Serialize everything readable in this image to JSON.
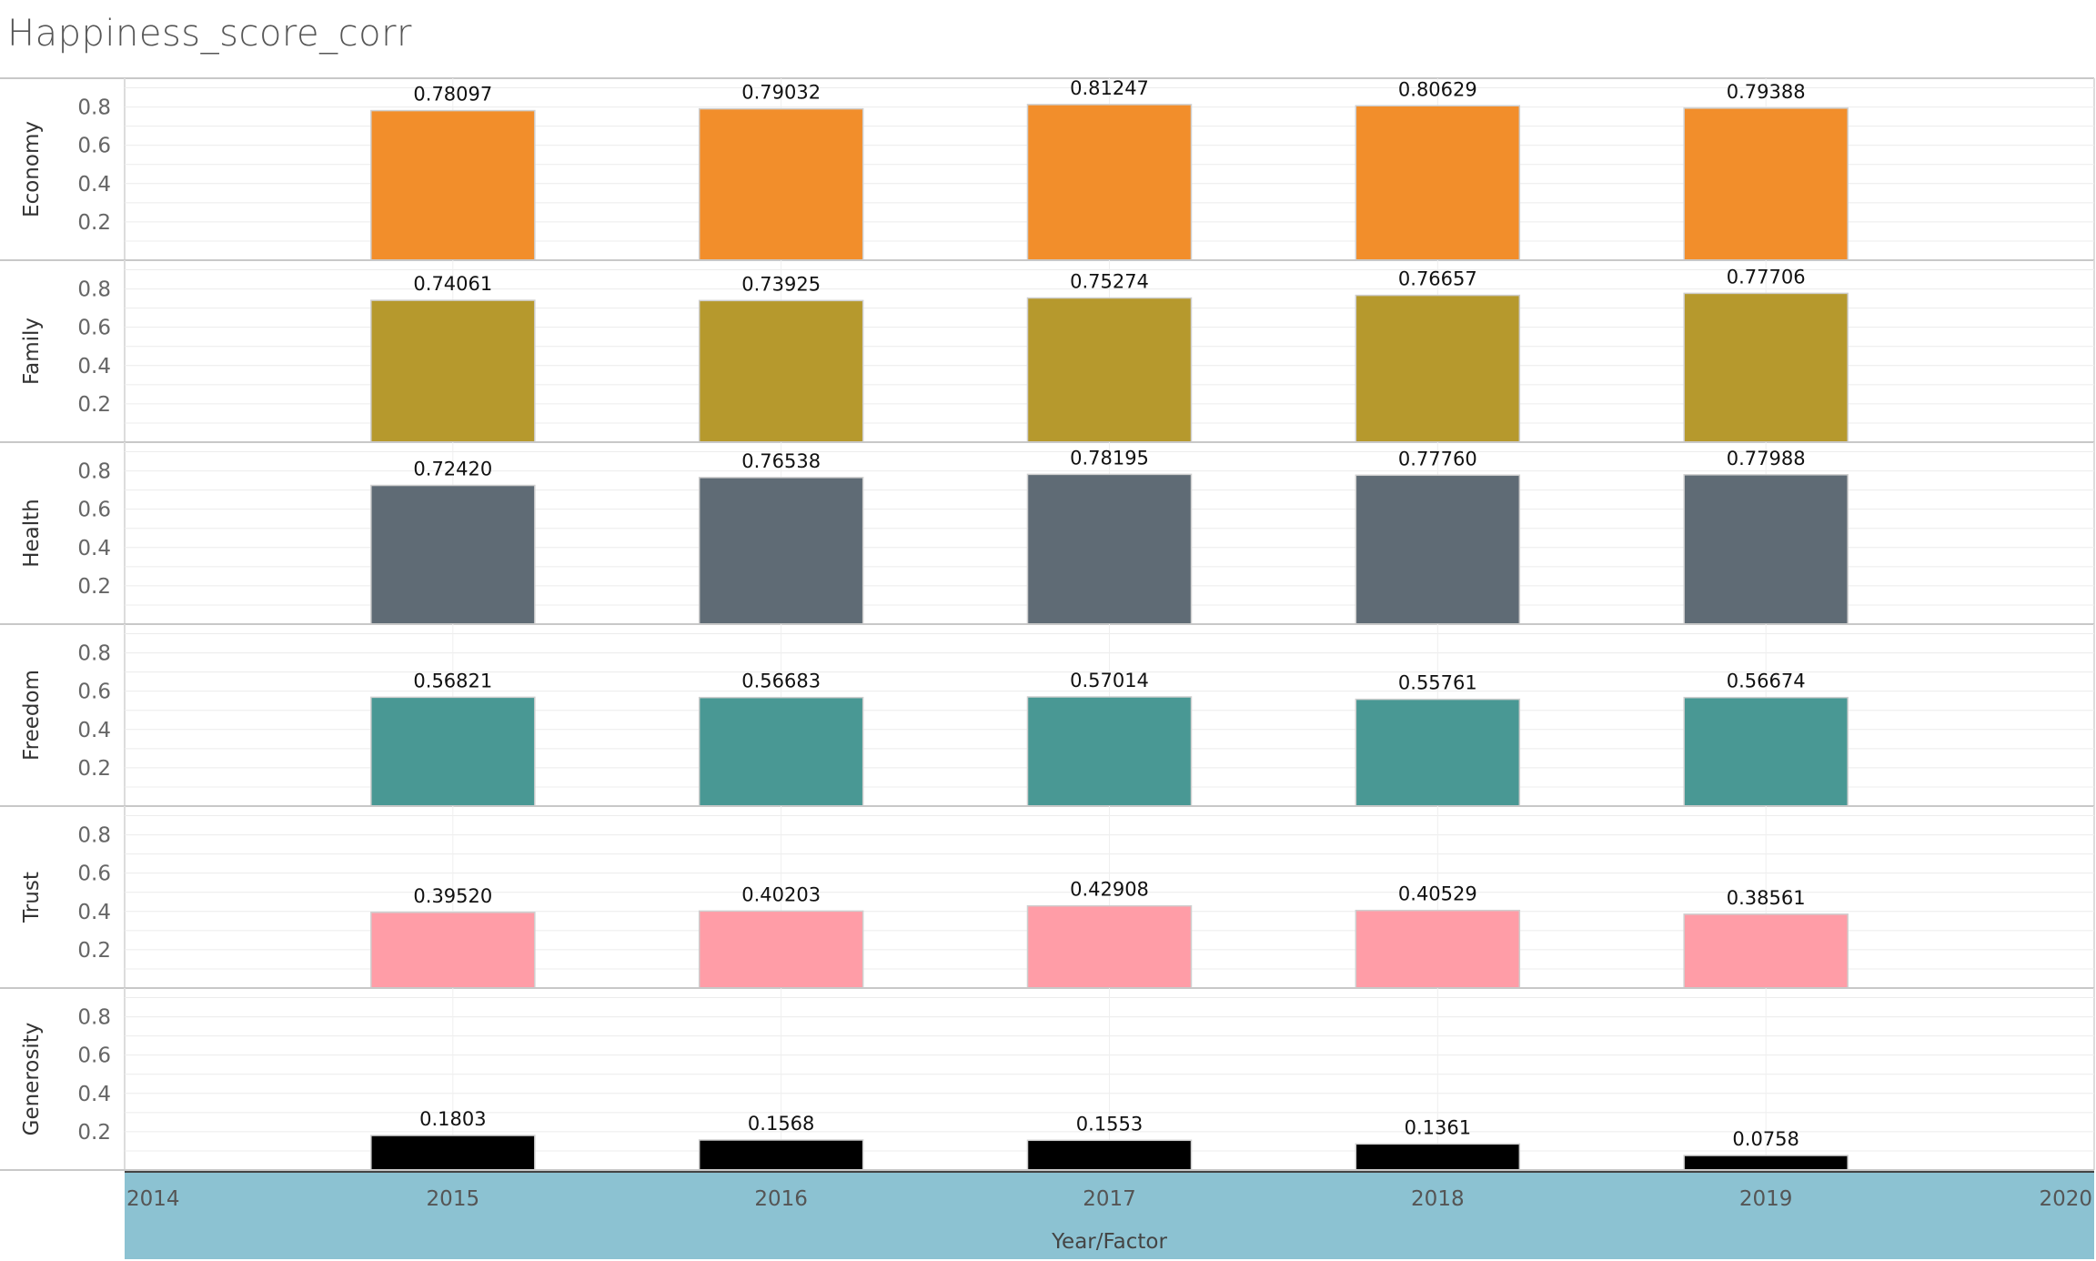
{
  "chart_data": {
    "type": "bar",
    "title": "Happiness_score_corr",
    "xlabel": "Year/Factor",
    "x_ticks": [
      "2014",
      "2015",
      "2016",
      "2017",
      "2018",
      "2019",
      "2020"
    ],
    "x_range": [
      2014,
      2020
    ],
    "ylim": [
      0,
      0.95
    ],
    "y_ticks": [
      0.2,
      0.4,
      0.6,
      0.8
    ],
    "y_tick_labels": [
      "0.2",
      "0.4",
      "0.6",
      "0.8"
    ],
    "categories": [
      2015,
      2016,
      2017,
      2018,
      2019
    ],
    "series": [
      {
        "name": "Economy",
        "color": "#F28E2B",
        "values": [
          0.78097,
          0.79032,
          0.81247,
          0.80629,
          0.79388
        ],
        "labels": [
          "0.78097",
          "0.79032",
          "0.81247",
          "0.80629",
          "0.79388"
        ]
      },
      {
        "name": "Family",
        "color": "#B6992D",
        "values": [
          0.74061,
          0.73925,
          0.75274,
          0.76657,
          0.77706
        ],
        "labels": [
          "0.74061",
          "0.73925",
          "0.75274",
          "0.76657",
          "0.77706"
        ]
      },
      {
        "name": "Health",
        "color": "#5F6B75",
        "values": [
          0.7242,
          0.76538,
          0.78195,
          0.7776,
          0.77988
        ],
        "labels": [
          "0.72420",
          "0.76538",
          "0.78195",
          "0.77760",
          "0.77988"
        ]
      },
      {
        "name": "Freedom",
        "color": "#499894",
        "values": [
          0.56821,
          0.56683,
          0.57014,
          0.55761,
          0.56674
        ],
        "labels": [
          "0.56821",
          "0.56683",
          "0.57014",
          "0.55761",
          "0.56674"
        ]
      },
      {
        "name": "Trust",
        "color": "#FF9DA7",
        "values": [
          0.3952,
          0.40203,
          0.42908,
          0.40529,
          0.38561
        ],
        "labels": [
          "0.39520",
          "0.40203",
          "0.42908",
          "0.40529",
          "0.38561"
        ]
      },
      {
        "name": "Generosity",
        "color": "#000000",
        "values": [
          0.1803,
          0.1568,
          0.1553,
          0.1361,
          0.0758
        ],
        "labels": [
          "0.1803",
          "0.1568",
          "0.1553",
          "0.1361",
          "0.0758"
        ]
      }
    ],
    "axis_band_color": "#8CC2D2"
  }
}
